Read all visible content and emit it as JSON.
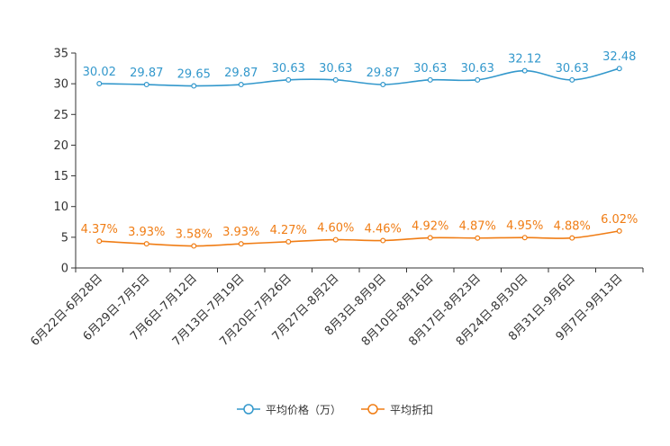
{
  "chart_data": {
    "type": "line",
    "title": "",
    "xlabel": "",
    "ylabel": "",
    "ylim": [
      0,
      35
    ],
    "yticks": [
      0,
      5,
      10,
      15,
      20,
      25,
      30,
      35
    ],
    "grid": false,
    "legend_position": "bottom-center",
    "categories": [
      "6月22日-6月28日",
      "6月29日-7月5日",
      "7月6日-7月12日",
      "7月13日-7月19日",
      "7月20日-7月26日",
      "7月27日-8月2日",
      "8月3日-8月9日",
      "8月10日-8月16日",
      "8月17日-8月23日",
      "8月24日-8月30日",
      "8月31日-9月6日",
      "9月7日-9月13日"
    ],
    "series": [
      {
        "name": "平均价格（万）",
        "color": "#3398cc",
        "values": [
          30.02,
          29.87,
          29.65,
          29.87,
          30.63,
          30.63,
          29.87,
          30.63,
          30.63,
          32.12,
          30.63,
          32.48
        ],
        "labels": [
          "30.02",
          "29.87",
          "29.65",
          "29.87",
          "30.63",
          "30.63",
          "29.87",
          "30.63",
          "30.63",
          "32.12",
          "30.63",
          "32.48"
        ]
      },
      {
        "name": "平均折扣",
        "color": "#f07d15",
        "values": [
          4.37,
          3.93,
          3.58,
          3.93,
          4.27,
          4.6,
          4.46,
          4.92,
          4.87,
          4.95,
          4.88,
          6.02
        ],
        "labels": [
          "4.37%",
          "3.93%",
          "3.58%",
          "3.93%",
          "4.27%",
          "4.60%",
          "4.46%",
          "4.92%",
          "4.87%",
          "4.95%",
          "4.88%",
          "6.02%"
        ]
      }
    ]
  }
}
